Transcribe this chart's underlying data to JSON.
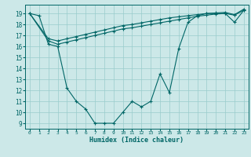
{
  "xlabel": "Humidex (Indice chaleur)",
  "bg_color": "#cce8e8",
  "line_color": "#006666",
  "grid_color": "#99cccc",
  "xlim": [
    -0.5,
    23.5
  ],
  "ylim": [
    8.5,
    19.8
  ],
  "yticks": [
    9,
    10,
    11,
    12,
    13,
    14,
    15,
    16,
    17,
    18,
    19
  ],
  "xticks": [
    0,
    1,
    2,
    3,
    4,
    5,
    6,
    7,
    8,
    9,
    10,
    11,
    12,
    13,
    14,
    15,
    16,
    17,
    18,
    19,
    20,
    21,
    22,
    23
  ],
  "line1_x": [
    0,
    1,
    2,
    3,
    4,
    5,
    6,
    7,
    8,
    9,
    10,
    11,
    12,
    13,
    14,
    15,
    16,
    17,
    18,
    19,
    20,
    21,
    22,
    23
  ],
  "line1_y": [
    19.0,
    18.8,
    16.2,
    16.0,
    12.2,
    11.0,
    10.3,
    9.0,
    9.0,
    9.0,
    10.0,
    11.0,
    10.5,
    11.0,
    13.5,
    11.8,
    15.8,
    18.2,
    18.8,
    19.0,
    19.0,
    19.0,
    18.2,
    19.3
  ],
  "line2_x": [
    0,
    2,
    3,
    4,
    5,
    6,
    7,
    8,
    9,
    10,
    11,
    12,
    13,
    14,
    15,
    16,
    17,
    18,
    19,
    20,
    21,
    22,
    23
  ],
  "line2_y": [
    19.0,
    16.5,
    16.2,
    16.4,
    16.6,
    16.8,
    17.0,
    17.2,
    17.4,
    17.6,
    17.7,
    17.85,
    18.0,
    18.15,
    18.3,
    18.45,
    18.6,
    18.75,
    18.85,
    18.95,
    19.0,
    18.85,
    19.3
  ],
  "line3_x": [
    0,
    2,
    3,
    4,
    5,
    6,
    7,
    8,
    9,
    10,
    11,
    12,
    13,
    14,
    15,
    16,
    17,
    18,
    19,
    20,
    21,
    22,
    23
  ],
  "line3_y": [
    19.0,
    16.7,
    16.5,
    16.7,
    16.9,
    17.1,
    17.3,
    17.5,
    17.7,
    17.9,
    18.0,
    18.15,
    18.3,
    18.45,
    18.6,
    18.7,
    18.8,
    18.9,
    19.0,
    19.05,
    19.1,
    18.9,
    19.4
  ]
}
